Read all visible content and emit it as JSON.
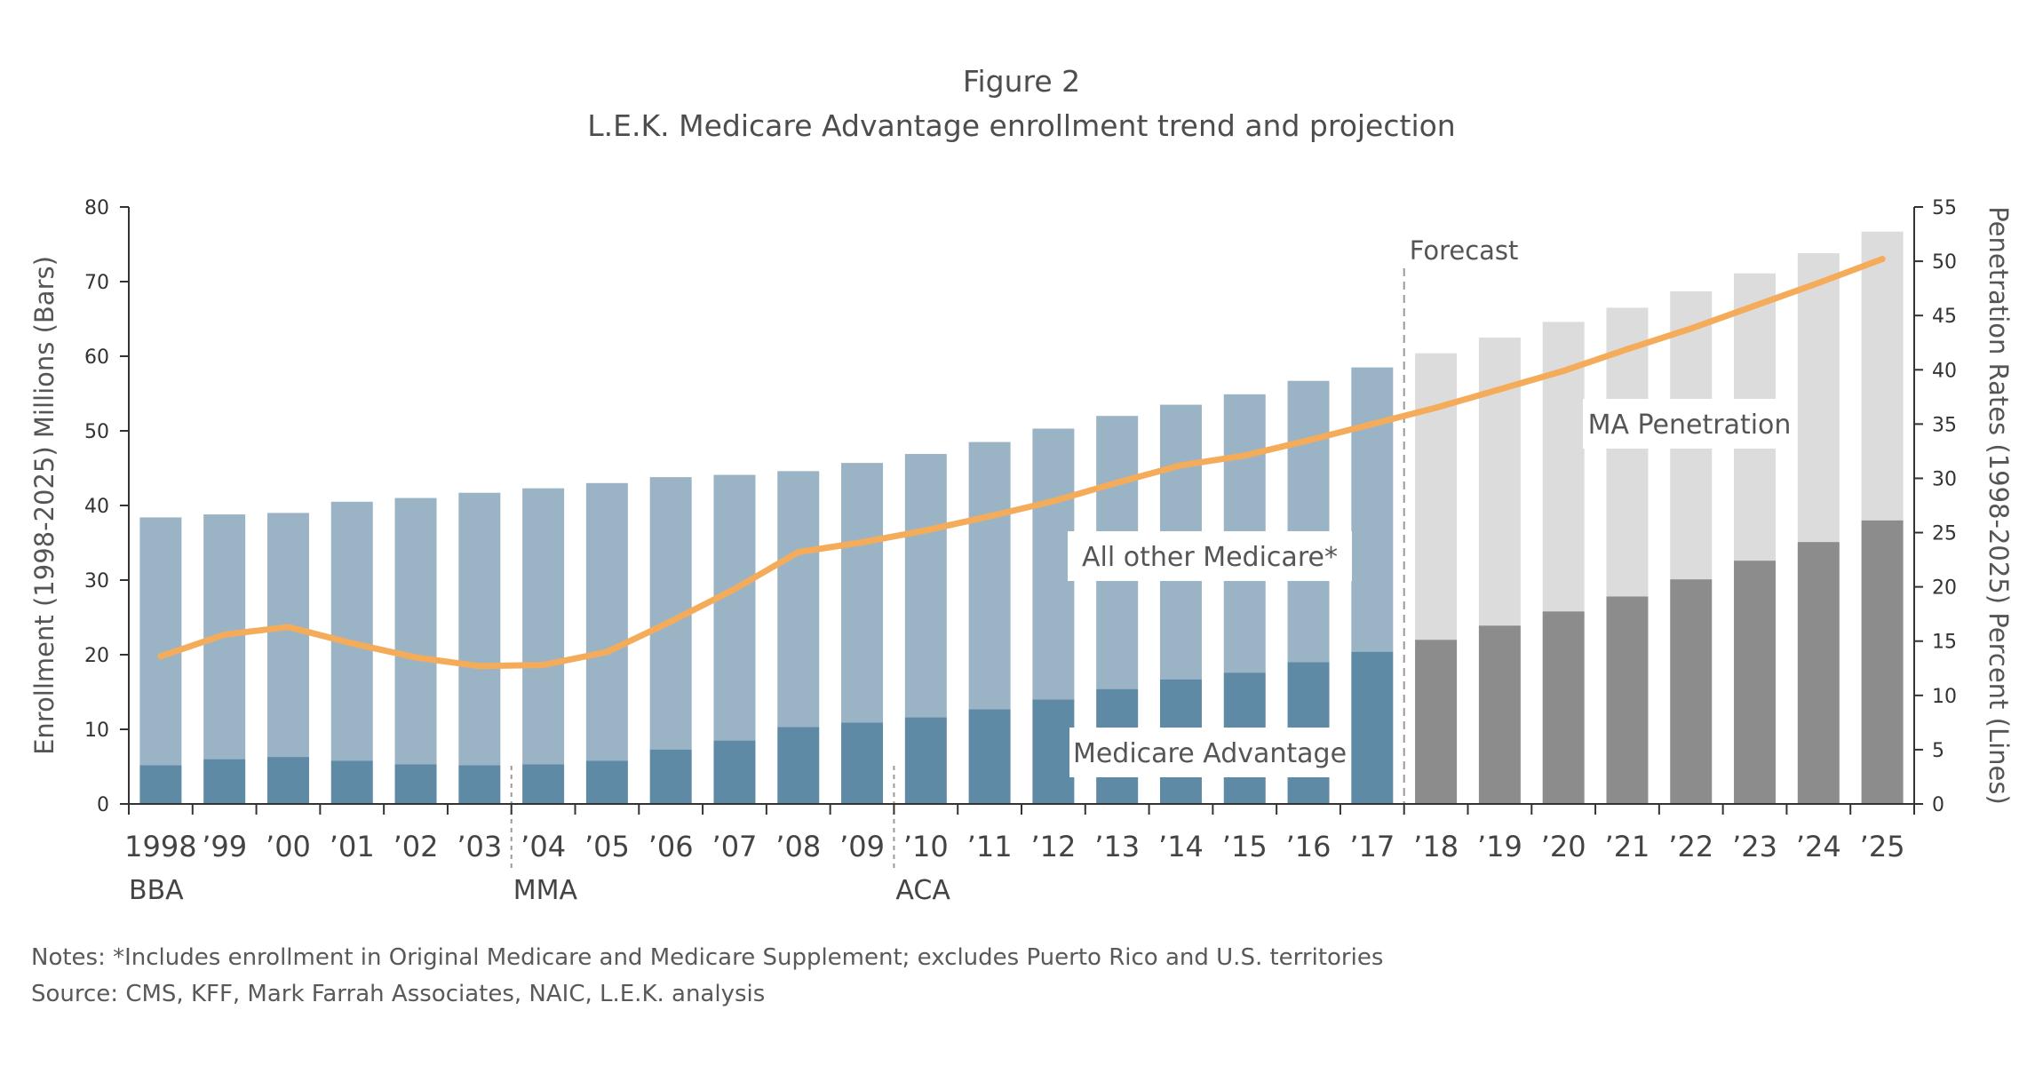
{
  "figure_label": "Figure 2",
  "title": "L.E.K. Medicare Advantage enrollment trend and projection",
  "notes": "Notes: *Includes enrollment in Original Medicare and Medicare Supplement; excludes Puerto Rico and U.S. territories",
  "source": "Source: CMS, KFF, Mark Farrah Associates, NAIC, L.E.K. analysis",
  "colors": {
    "ma_actual": "#5f8aa5",
    "other_actual": "#9bb4c5",
    "ma_forecast": "#8c8c8c",
    "other_forecast": "#dcdcdc",
    "line": "#f5ac5a",
    "axis": "#333333"
  },
  "chart_data": {
    "type": "bar",
    "stacked": true,
    "categories": [
      "1998",
      "’99",
      "’00",
      "’01",
      "’02",
      "’03",
      "’04",
      "’05",
      "’06",
      "’07",
      "’08",
      "’09",
      "’10",
      "’11",
      "’12",
      "’13",
      "’14",
      "’15",
      "’16",
      "’17",
      "’18",
      "’19",
      "’20",
      "’21",
      "’22",
      "’23",
      "’24",
      "’25"
    ],
    "forecast_start_index": 20,
    "series": [
      {
        "name": "Medicare Advantage",
        "axis": "left",
        "values": [
          5.2,
          6.0,
          6.3,
          5.8,
          5.3,
          5.2,
          5.3,
          5.8,
          7.3,
          8.5,
          10.3,
          10.9,
          11.6,
          12.7,
          14.0,
          15.4,
          16.7,
          17.6,
          19.0,
          20.4,
          22.0,
          23.9,
          25.8,
          27.8,
          30.1,
          32.6,
          35.1,
          38.0
        ]
      },
      {
        "name": "All other Medicare*",
        "axis": "left",
        "values": [
          33.2,
          32.8,
          32.7,
          34.7,
          35.7,
          36.5,
          37.0,
          37.2,
          36.5,
          35.6,
          34.3,
          34.8,
          35.3,
          35.8,
          36.3,
          36.6,
          36.8,
          37.3,
          37.7,
          38.1,
          38.4,
          38.6,
          38.8,
          38.7,
          38.6,
          38.5,
          38.7,
          38.7
        ]
      },
      {
        "name": "MA Penetration",
        "axis": "right",
        "type": "line",
        "values": [
          13.6,
          15.6,
          16.3,
          14.8,
          13.5,
          12.7,
          12.8,
          14.0,
          16.8,
          19.8,
          23.2,
          24.1,
          25.2,
          26.5,
          27.9,
          29.6,
          31.2,
          32.1,
          33.5,
          35.0,
          36.5,
          38.2,
          39.9,
          41.9,
          43.8,
          45.9,
          48.0,
          50.2
        ]
      }
    ],
    "y_left": {
      "label": "Enrollment (1998-2025) Millions (Bars)",
      "min": 0,
      "max": 80,
      "ticks": [
        0,
        10,
        20,
        30,
        40,
        50,
        60,
        70,
        80
      ]
    },
    "y_right": {
      "label": "Penetration Rates (1998-2025) Percent (Lines)",
      "min": 0,
      "max": 55,
      "ticks": [
        0,
        5,
        10,
        15,
        20,
        25,
        30,
        35,
        40,
        45,
        50,
        55
      ]
    },
    "annotations": {
      "forecast": "Forecast",
      "events": [
        {
          "label": "BBA",
          "index": 0
        },
        {
          "label": "MMA",
          "index": 6
        },
        {
          "label": "ACA",
          "index": 12
        }
      ],
      "series_labels": {
        "ma": "Medicare Advantage",
        "other": "All other Medicare*",
        "penetration": "MA Penetration"
      }
    }
  }
}
